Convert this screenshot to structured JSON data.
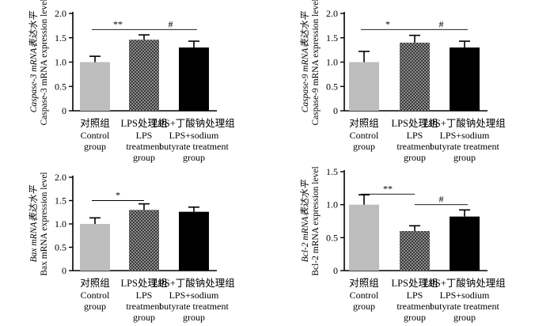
{
  "palette": {
    "control": "#bdbdbd",
    "lps": "#8c8c8c",
    "lps_dark": "#3a3a3a",
    "sodium": "#000000"
  },
  "category_labels": {
    "cn": [
      "对照组",
      "LPS处理组",
      "LPS+丁酸钠处理组"
    ],
    "en": [
      [
        "Control",
        "group"
      ],
      [
        "LPS",
        "treatment",
        "group"
      ],
      [
        "LPS+sodium",
        "butyrate treatment",
        "group"
      ]
    ]
  },
  "chart_data": [
    {
      "type": "bar",
      "ylabel_cn": "Caspase-3 mRNA表达水平",
      "ylabel_en": "Caspase-3 mRNA expression level",
      "ylim": [
        0,
        2.0
      ],
      "yticks": [
        0,
        0.5,
        1.0,
        1.5,
        2.0
      ],
      "tick_labels": [
        "0",
        "0.5",
        "1.0",
        "1.5",
        "2.0"
      ],
      "values": [
        1.0,
        1.46,
        1.3
      ],
      "errors": [
        0.12,
        0.1,
        0.13
      ],
      "sig": [
        {
          "from": 0,
          "to": 1,
          "label": "**",
          "y": 1.67
        },
        {
          "from": 1,
          "to": 2,
          "label": "#",
          "y": 1.67
        }
      ]
    },
    {
      "type": "bar",
      "ylabel_cn": "Caspase-9 mRNA表达水平",
      "ylabel_en": "Caspase-9 mRNA expression level",
      "ylim": [
        0,
        2.0
      ],
      "yticks": [
        0,
        0.5,
        1.0,
        1.5,
        2.0
      ],
      "tick_labels": [
        "0",
        "0.5",
        "1.0",
        "1.5",
        "2.0"
      ],
      "values": [
        1.0,
        1.4,
        1.3
      ],
      "errors": [
        0.22,
        0.15,
        0.13
      ],
      "sig": [
        {
          "from": 0,
          "to": 1,
          "label": "*",
          "y": 1.67
        },
        {
          "from": 1,
          "to": 2,
          "label": "#",
          "y": 1.67
        }
      ]
    },
    {
      "type": "bar",
      "ylabel_cn": "Bax mRNA表达水平",
      "ylabel_en": "Bax mRNA expression level",
      "ylim": [
        0,
        2.0
      ],
      "yticks": [
        0,
        0.5,
        1.0,
        1.5,
        2.0
      ],
      "tick_labels": [
        "0",
        "0.5",
        "1.0",
        "1.5",
        "2.0"
      ],
      "values": [
        1.0,
        1.3,
        1.26
      ],
      "errors": [
        0.13,
        0.13,
        0.1
      ],
      "sig": [
        {
          "from": 0,
          "to": 1,
          "label": "*",
          "y": 1.5
        }
      ]
    },
    {
      "type": "bar",
      "ylabel_cn": "Bcl-2 mRNA表达水平",
      "ylabel_en": "Bcl-2 mRNA expression level",
      "ylim": [
        0,
        1.5
      ],
      "yticks": [
        0,
        0.5,
        1.0,
        1.5
      ],
      "tick_labels": [
        "0",
        "0.5",
        "1.0",
        "1.5"
      ],
      "values": [
        1.0,
        0.6,
        0.82
      ],
      "errors": [
        0.15,
        0.08,
        0.1
      ],
      "sig": [
        {
          "from": 0,
          "to": 1,
          "label": "**",
          "y": 1.16
        },
        {
          "from": 1,
          "to": 2,
          "label": "#",
          "y": 1.0
        }
      ]
    }
  ]
}
